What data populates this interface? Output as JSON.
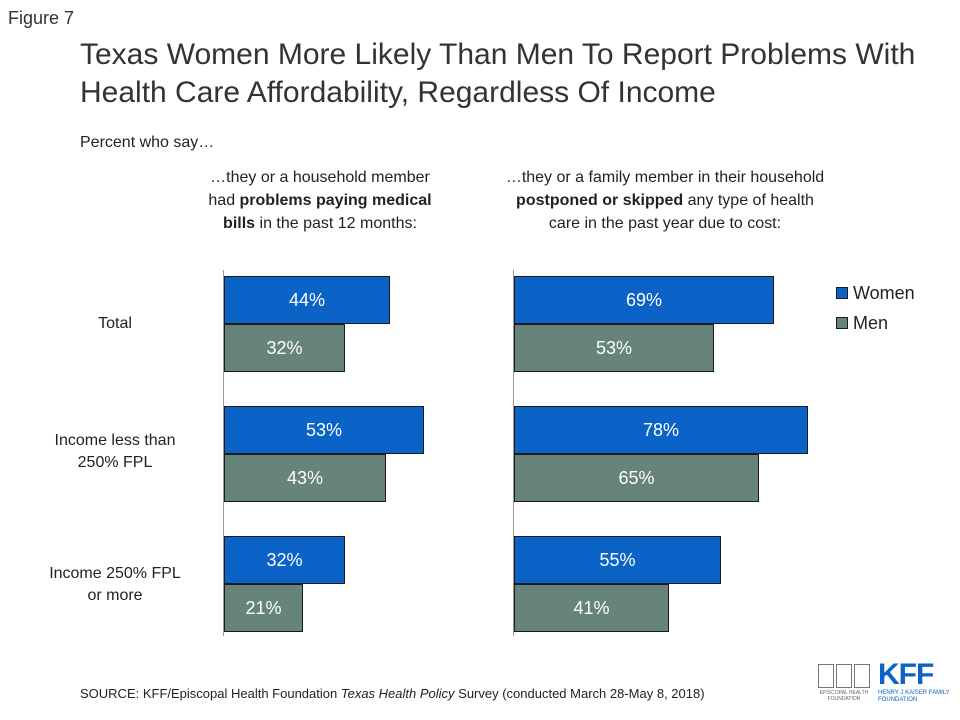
{
  "figure_label": "Figure 7",
  "title": "Texas Women More Likely Than Men To Report Problems With Health Care Affordability, Regardless Of Income",
  "subtitle": "Percent who say…",
  "panels": {
    "left": {
      "pre": "…they or a household member had ",
      "bold": "problems paying medical bills",
      "post": " in the past 12 months:"
    },
    "right": {
      "pre": "…they or a family member in their household ",
      "bold": "postponed or skipped",
      "post": " any type of health care in the past year due to cost:"
    }
  },
  "legend": {
    "women": "Women",
    "men": "Men"
  },
  "colors": {
    "women": "#0b63c7",
    "men": "#66847a"
  },
  "source": {
    "prefix": "SOURCE: KFF/Episcopal Health Foundation ",
    "italic": "Texas Health Policy",
    "suffix": " Survey (conducted March 28-May 8, 2018)"
  },
  "logos": {
    "ehf_text": "EPISCOPAL HEALTH FOUNDATION",
    "kff_mark": "KFF",
    "kff_sub": "HENRY J KAISER FAMILY FOUNDATION"
  },
  "chart_data": [
    {
      "type": "bar",
      "orientation": "horizontal",
      "panel": "left",
      "categories": [
        "Total",
        "Income less than 250% FPL",
        "Income 250% FPL or more"
      ],
      "series": [
        {
          "name": "Women",
          "values": [
            44,
            53,
            32
          ],
          "labels": [
            "44%",
            "53%",
            "32%"
          ]
        },
        {
          "name": "Men",
          "values": [
            32,
            43,
            21
          ],
          "labels": [
            "32%",
            "43%",
            "21%"
          ]
        }
      ]
    },
    {
      "type": "bar",
      "orientation": "horizontal",
      "panel": "right",
      "categories": [
        "Total",
        "Income less than 250% FPL",
        "Income 250% FPL or more"
      ],
      "series": [
        {
          "name": "Women",
          "values": [
            69,
            78,
            55
          ],
          "labels": [
            "69%",
            "78%",
            "55%"
          ]
        },
        {
          "name": "Men",
          "values": [
            53,
            65,
            41
          ],
          "labels": [
            "53%",
            "65%",
            "41%"
          ]
        }
      ]
    }
  ],
  "category_labels": [
    [
      "Total"
    ],
    [
      "Income less than",
      "250% FPL"
    ],
    [
      "Income 250% FPL",
      "or more"
    ]
  ]
}
